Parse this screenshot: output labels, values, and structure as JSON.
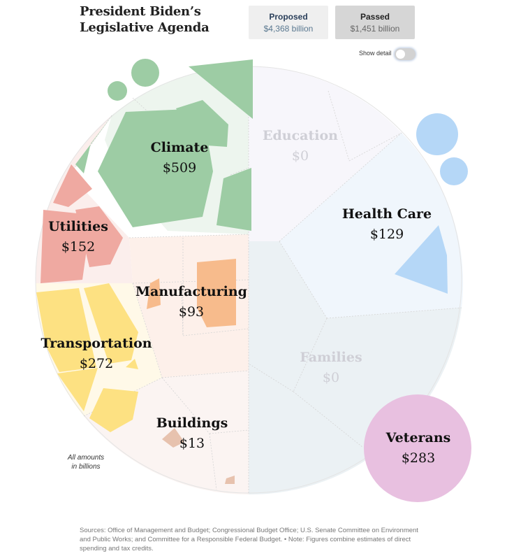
{
  "header": {
    "title_line1": "President Biden’s",
    "title_line2": "Legislative Agenda"
  },
  "toggle": {
    "proposed_label": "Proposed",
    "proposed_value": "$4,368 billion",
    "passed_label": "Passed",
    "passed_value": "$1,451 billion",
    "selected": "Passed"
  },
  "detail": {
    "label": "Show detail",
    "on": false
  },
  "chart_data": {
    "type": "voronoi-treemap",
    "unit": "billions of dollars",
    "categories": [
      {
        "name": "Climate",
        "label": "$509",
        "value": 509,
        "color": "#9dcca4"
      },
      {
        "name": "Utilities",
        "label": "$152",
        "value": 152,
        "color": "#efa9a1"
      },
      {
        "name": "Manufacturing",
        "label": "$93",
        "value": 93,
        "color": "#f7bb8c"
      },
      {
        "name": "Transportation",
        "label": "$272",
        "value": 272,
        "color": "#fde182"
      },
      {
        "name": "Buildings",
        "label": "$13",
        "value": 13,
        "color": "#e7c2ae"
      },
      {
        "name": "Education",
        "label": "$0",
        "value": 0,
        "color": "#f5f4fa"
      },
      {
        "name": "Health Care",
        "label": "$129",
        "value": 129,
        "color": "#b5d7f7"
      },
      {
        "name": "Families",
        "label": "$0",
        "value": 0,
        "color": "#ebf1f4"
      },
      {
        "name": "Veterans",
        "label": "$283",
        "value": 283,
        "color": "#e8c0e0"
      }
    ]
  },
  "note": {
    "line1": "All amounts",
    "line2": "in billions"
  },
  "sources": "Sources: Office of Management and Budget; Congressional Budget Office; U.S. Senate Committee on Environment and Public Works; and Committee for a Responsible Federal Budget.  •  Note: Figures combine estimates of direct spending and tax credits."
}
